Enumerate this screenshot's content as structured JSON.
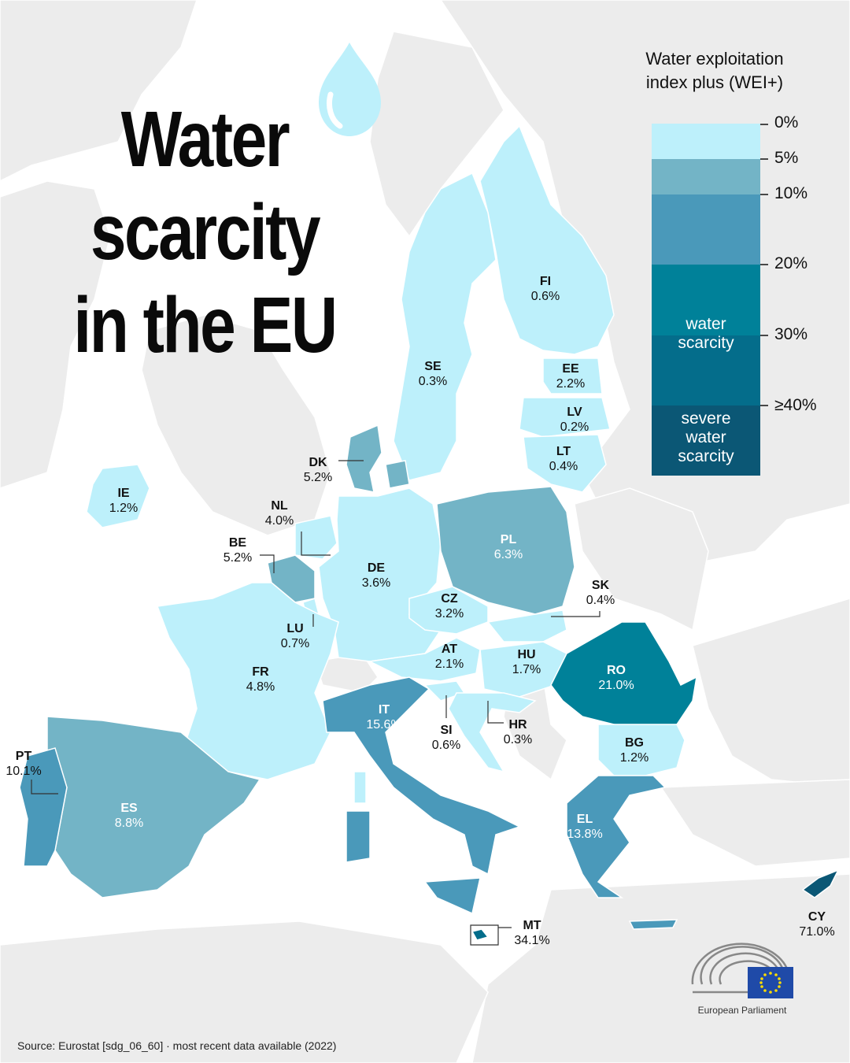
{
  "title": {
    "line1": "Water",
    "line2": "scarcity",
    "line3": "in the EU"
  },
  "legend": {
    "title_line1": "Water exploitation",
    "title_line2": "index plus (WEI+)",
    "ticks": [
      "0%",
      "5%",
      "10%",
      "20%",
      "30%",
      "≥40%"
    ],
    "band_water": "water scarcity",
    "band_severe_line1": "severe",
    "band_severe_line2": "water",
    "band_severe_line3": "scarcity",
    "colors": [
      "#bdf0fb",
      "#73b4c6",
      "#4a99ba",
      "#008199",
      "#046d8b",
      "#0b5775"
    ]
  },
  "countries": {
    "FI": {
      "code": "FI",
      "value": "0.6%"
    },
    "SE": {
      "code": "SE",
      "value": "0.3%"
    },
    "EE": {
      "code": "EE",
      "value": "2.2%"
    },
    "LV": {
      "code": "LV",
      "value": "0.2%"
    },
    "LT": {
      "code": "LT",
      "value": "0.4%"
    },
    "DK": {
      "code": "DK",
      "value": "5.2%"
    },
    "IE": {
      "code": "IE",
      "value": "1.2%"
    },
    "NL": {
      "code": "NL",
      "value": "4.0%"
    },
    "BE": {
      "code": "BE",
      "value": "5.2%"
    },
    "LU": {
      "code": "LU",
      "value": "0.7%"
    },
    "DE": {
      "code": "DE",
      "value": "3.6%"
    },
    "PL": {
      "code": "PL",
      "value": "6.3%"
    },
    "CZ": {
      "code": "CZ",
      "value": "3.2%"
    },
    "SK": {
      "code": "SK",
      "value": "0.4%"
    },
    "AT": {
      "code": "AT",
      "value": "2.1%"
    },
    "HU": {
      "code": "HU",
      "value": "1.7%"
    },
    "RO": {
      "code": "RO",
      "value": "21.0%"
    },
    "FR": {
      "code": "FR",
      "value": "4.8%"
    },
    "IT": {
      "code": "IT",
      "value": "15.6%"
    },
    "SI": {
      "code": "SI",
      "value": "0.6%"
    },
    "HR": {
      "code": "HR",
      "value": "0.3%"
    },
    "BG": {
      "code": "BG",
      "value": "1.2%"
    },
    "PT": {
      "code": "PT",
      "value": "10.1%"
    },
    "ES": {
      "code": "ES",
      "value": "8.8%"
    },
    "EL": {
      "code": "EL",
      "value": "13.8%"
    },
    "MT": {
      "code": "MT",
      "value": "34.1%"
    },
    "CY": {
      "code": "CY",
      "value": "71.0%"
    }
  },
  "source": "Source: Eurostat [sdg_06_60] · most recent data available (2022)",
  "logo_text": "European Parliament",
  "icons": [
    "water-drop-icon",
    "parliament-hemicycle-icon",
    "eu-flag-icon"
  ]
}
